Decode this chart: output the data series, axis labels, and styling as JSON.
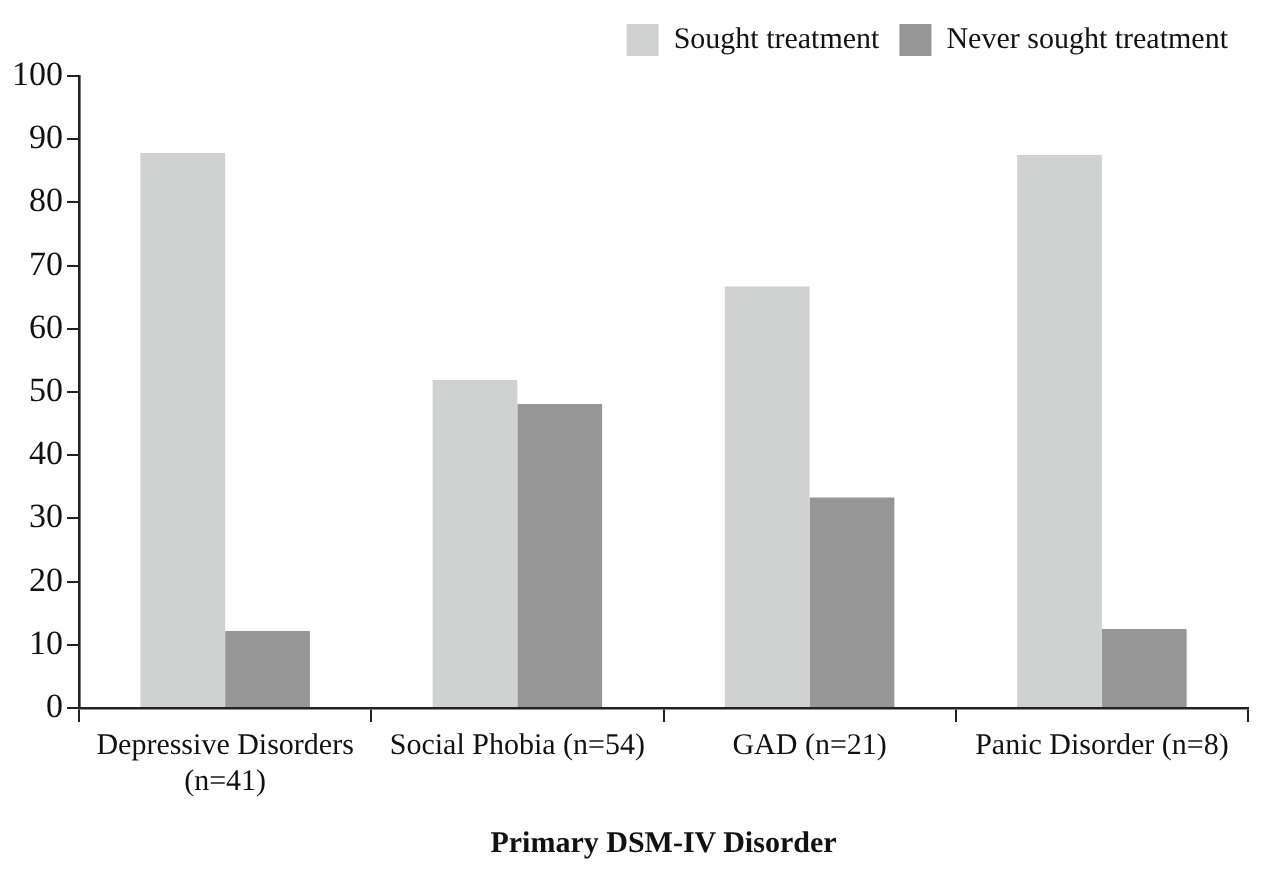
{
  "chart_data": {
    "type": "bar",
    "xlabel": "Primary DSM-IV Disorder",
    "categories": [
      "Depressive Disorders (n=41)",
      "Social Phobia (n=54)",
      "GAD (n=21)",
      "Panic Disorder (n=8)"
    ],
    "series": [
      {
        "name": "Sought treatment",
        "color": "#d0d2d2",
        "values": [
          87.8,
          51.9,
          66.7,
          87.5
        ]
      },
      {
        "name": "Never sought treatment",
        "color": "#969696",
        "values": [
          12.2,
          48.1,
          33.3,
          12.5
        ]
      }
    ],
    "ylim": [
      0,
      100
    ],
    "yticks": [
      0,
      10,
      20,
      30,
      40,
      50,
      60,
      70,
      80,
      90,
      100
    ],
    "grid": false,
    "legend": "top right"
  }
}
